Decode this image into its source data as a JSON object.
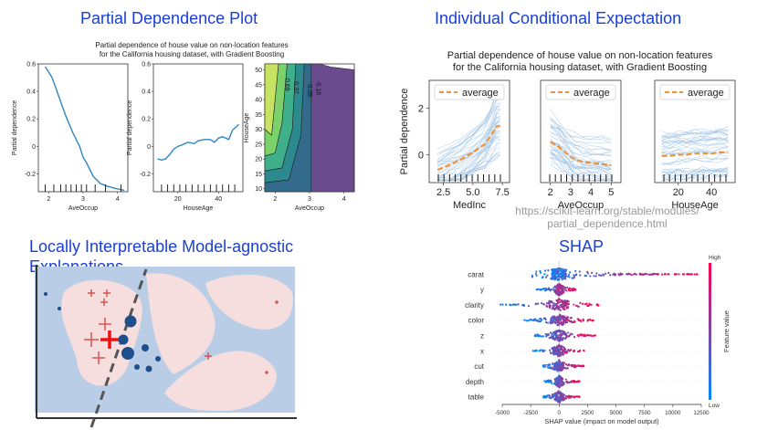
{
  "headings": {
    "pdp": "Partial Dependence Plot",
    "ice": "Individual Conditional Expectation",
    "lime_line1": "Locally Interpretable Model-agnostic",
    "lime_line2": "Explanations",
    "shap": "SHAP"
  },
  "url": {
    "line1": "https://scikit-learn.org/stable/modules/",
    "line2": "partial_dependence.html"
  },
  "chart_data": [
    {
      "id": "pdp",
      "type": "line",
      "title_line1": "Partial dependence of house value on non-location features",
      "title_line2": "for the California housing dataset, with Gradient Boosting",
      "ylabel": "Partial dependence",
      "subplots": [
        {
          "xlabel": "AveOccup",
          "xlim": [
            1.7,
            4.3
          ],
          "ylim": [
            -0.33,
            0.6
          ],
          "xticks": [
            2,
            3,
            4
          ],
          "yticks": [
            -0.2,
            0,
            0.2,
            0.4,
            0.6
          ],
          "x": [
            1.9,
            2.1,
            2.3,
            2.5,
            2.7,
            2.9,
            3.0,
            3.1,
            3.3,
            3.5,
            3.7,
            4.0,
            4.2
          ],
          "y": [
            0.58,
            0.5,
            0.36,
            0.22,
            0.1,
            0.0,
            -0.08,
            -0.12,
            -0.22,
            -0.27,
            -0.29,
            -0.31,
            -0.32
          ],
          "rug": [
            1.9,
            2.15,
            2.35,
            2.5,
            2.65,
            2.8,
            2.95,
            3.1,
            3.35,
            3.65,
            4.1
          ]
        },
        {
          "xlabel": "HouseAge",
          "xlim": [
            8,
            52
          ],
          "ylim": [
            -0.33,
            0.6
          ],
          "xticks": [
            20,
            40
          ],
          "yticks": [
            -0.2,
            0,
            0.2,
            0.4,
            0.6
          ],
          "x": [
            10,
            12,
            14,
            16,
            18,
            20,
            22,
            25,
            28,
            30,
            33,
            36,
            38,
            40,
            42,
            45,
            47,
            50
          ],
          "y": [
            -0.09,
            -0.1,
            -0.09,
            -0.06,
            -0.02,
            0.0,
            0.01,
            0.03,
            0.02,
            0.04,
            0.05,
            0.05,
            0.03,
            0.06,
            0.07,
            0.05,
            0.12,
            0.16
          ],
          "rug": [
            12,
            15,
            18,
            21,
            24,
            27,
            30,
            33,
            36,
            39,
            42,
            45,
            48
          ]
        },
        {
          "type": "contour",
          "xlabel": "AveOccup",
          "ylabel": "HouseAge",
          "xlim": [
            1.7,
            4.3
          ],
          "ylim": [
            9,
            52
          ],
          "xticks": [
            2,
            3,
            4
          ],
          "yticks": [
            10,
            15,
            20,
            25,
            30,
            35,
            40,
            45,
            50
          ],
          "contour_labels": [
            "0.69",
            "0.37",
            "0.05",
            "-0.18"
          ]
        }
      ]
    },
    {
      "id": "ice",
      "type": "line",
      "title_line1": "Partial dependence of house value on non-location features",
      "title_line2": "for the California housing dataset, with Gradient Boosting",
      "ylabel": "Partial dependence",
      "legend": "average",
      "yticks": [
        0,
        2
      ],
      "ylim": [
        -1.2,
        3.2
      ],
      "subplots": [
        {
          "xlabel": "MedInc",
          "xlim": [
            1.6,
            7.8
          ],
          "xticks": [
            2.5,
            5.0,
            7.5
          ],
          "xtick_labels": [
            "2.5",
            "5.0",
            "7.5"
          ],
          "x": [
            2.0,
            3.0,
            4.0,
            5.0,
            6.0,
            6.5,
            7.0,
            7.3
          ],
          "average": [
            -0.65,
            -0.45,
            -0.2,
            0.1,
            0.45,
            0.8,
            1.2,
            1.25
          ]
        },
        {
          "xlabel": "AveOccup",
          "xlim": [
            1.7,
            5.3
          ],
          "xticks": [
            2,
            3,
            4,
            5
          ],
          "xtick_labels": [
            "2",
            "3",
            "4",
            "5"
          ],
          "x": [
            2.0,
            2.4,
            2.8,
            3.2,
            3.6,
            4.0,
            4.5,
            5.0
          ],
          "average": [
            0.55,
            0.35,
            0.05,
            -0.2,
            -0.3,
            -0.35,
            -0.4,
            -0.45
          ]
        },
        {
          "xlabel": "HouseAge",
          "xlim": [
            8,
            52
          ],
          "xticks": [
            20,
            40
          ],
          "xtick_labels": [
            "20",
            "40"
          ],
          "x": [
            10,
            15,
            20,
            25,
            30,
            35,
            40,
            45,
            50
          ],
          "average": [
            -0.05,
            -0.05,
            0.0,
            0.0,
            0.05,
            0.05,
            0.05,
            0.1,
            0.1
          ]
        }
      ]
    },
    {
      "id": "shap",
      "type": "scatter",
      "features": [
        "carat",
        "y",
        "clarity",
        "color",
        "z",
        "x",
        "cut",
        "depth",
        "table"
      ],
      "spreads": [
        [
          -2600,
          12200
        ],
        [
          -2000,
          1500
        ],
        [
          -5200,
          3500
        ],
        [
          -3100,
          3000
        ],
        [
          -2200,
          3200
        ],
        [
          -2300,
          2200
        ],
        [
          -1600,
          2200
        ],
        [
          -1300,
          1800
        ],
        [
          -1400,
          1800
        ]
      ],
      "xlabel": "SHAP value (impact on model output)",
      "xlim": [
        -5000,
        12500
      ],
      "xticks": [
        -5000,
        -2500,
        0,
        2500,
        5000,
        7500,
        10000,
        12500
      ],
      "colorbar": {
        "high": "High",
        "low": "Low",
        "label": "Feature value",
        "high_color": "#ff0052",
        "low_color": "#008bfb"
      }
    }
  ]
}
